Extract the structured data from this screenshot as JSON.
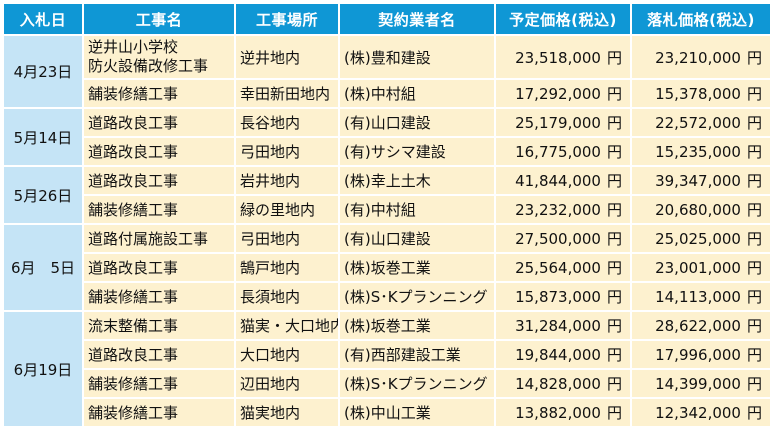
{
  "header": {
    "date": "入札日",
    "work_name": "工事名",
    "location": "工事場所",
    "contractor": "契約業者名",
    "estimated_price": "予定価格(税込)",
    "winning_price": "落札価格(税込)"
  },
  "groups": [
    {
      "date": "4月23日",
      "rows": [
        {
          "name_lines": [
            "逆井山小学校",
            "防火設備改修工事"
          ],
          "location": "逆井地内",
          "contractor": "(株)豊和建設",
          "estimated": "23,518,000",
          "winning": "23,210,000"
        },
        {
          "name_lines": [
            "舗装修繕工事"
          ],
          "location": "幸田新田地内",
          "contractor": "(株)中村組",
          "estimated": "17,292,000",
          "winning": "15,378,000"
        }
      ]
    },
    {
      "date": "5月14日",
      "rows": [
        {
          "name_lines": [
            "道路改良工事"
          ],
          "location": "長谷地内",
          "contractor": "(有)山口建設",
          "estimated": "25,179,000",
          "winning": "22,572,000"
        },
        {
          "name_lines": [
            "道路改良工事"
          ],
          "location": "弓田地内",
          "contractor": "(有)サシマ建設",
          "estimated": "16,775,000",
          "winning": "15,235,000"
        }
      ]
    },
    {
      "date": "5月26日",
      "rows": [
        {
          "name_lines": [
            "道路改良工事"
          ],
          "location": "岩井地内",
          "contractor": "(株)幸上土木",
          "estimated": "41,844,000",
          "winning": "39,347,000"
        },
        {
          "name_lines": [
            "舗装修繕工事"
          ],
          "location": "緑の里地内",
          "contractor": "(有)中村組",
          "estimated": "23,232,000",
          "winning": "20,680,000"
        }
      ]
    },
    {
      "date": "6月　5日",
      "rows": [
        {
          "name_lines": [
            "道路付属施設工事"
          ],
          "location": "弓田地内",
          "contractor": "(有)山口建設",
          "estimated": "27,500,000",
          "winning": "25,025,000"
        },
        {
          "name_lines": [
            "道路改良工事"
          ],
          "location": "鵠戸地内",
          "contractor": "(株)坂巻工業",
          "estimated": "25,564,000",
          "winning": "23,001,000"
        },
        {
          "name_lines": [
            "舗装修繕工事"
          ],
          "location": "長須地内",
          "contractor": "(株)S･Kプランニング",
          "estimated": "15,873,000",
          "winning": "14,113,000"
        }
      ]
    },
    {
      "date": "6月19日",
      "rows": [
        {
          "name_lines": [
            "流末整備工事"
          ],
          "location": "猫実・大口地内",
          "contractor": "(株)坂巻工業",
          "estimated": "31,284,000",
          "winning": "28,622,000"
        },
        {
          "name_lines": [
            "道路改良工事"
          ],
          "location": "大口地内",
          "contractor": "(有)西部建設工業",
          "estimated": "19,844,000",
          "winning": "17,996,000"
        },
        {
          "name_lines": [
            "舗装修繕工事"
          ],
          "location": "辺田地内",
          "contractor": "(株)S･Kプランニング",
          "estimated": "14,828,000",
          "winning": "14,399,000"
        },
        {
          "name_lines": [
            "舗装修繕工事"
          ],
          "location": "猫実地内",
          "contractor": "(株)中山工業",
          "estimated": "13,882,000",
          "winning": "12,342,000"
        }
      ]
    }
  ],
  "currency_unit": "円",
  "colors": {
    "header_bg": "#0f97d5",
    "date_cell_bg": "#c5e4f6",
    "row_bg": "#fdf1cf"
  }
}
